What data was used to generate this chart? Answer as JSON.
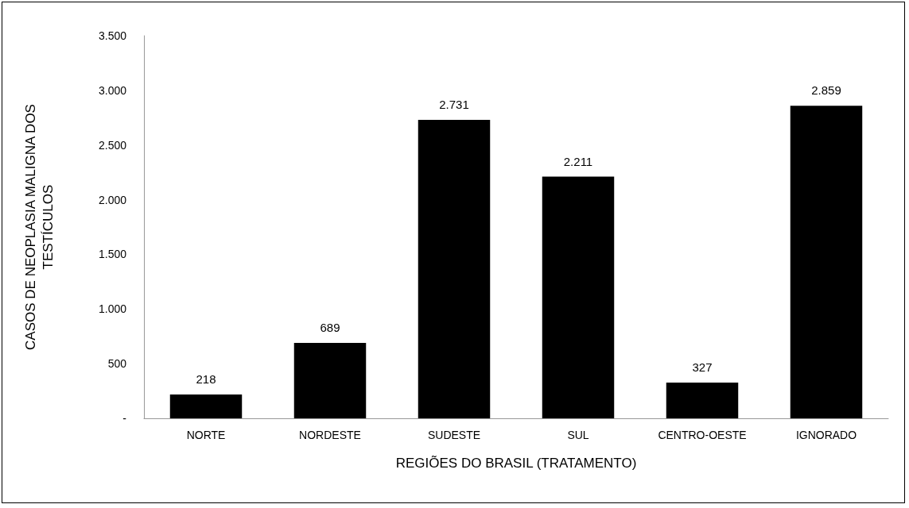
{
  "chart_data": {
    "type": "bar",
    "xlabel": "REGIÕES DO BRASIL (TRATAMENTO)",
    "ylabel": "CASOS DE NEOPLASIA MALIGNA DOS TESTÍCULOS",
    "categories": [
      "NORTE",
      "NORDESTE",
      "SUDESTE",
      "SUL",
      "CENTRO-OESTE",
      "IGNORADO"
    ],
    "values": [
      218,
      689,
      2731,
      2211,
      327,
      2859
    ],
    "value_labels": [
      "218",
      "689",
      "2.731",
      "2.211",
      "327",
      "2.859"
    ],
    "color": "#000000",
    "ylim": [
      0,
      3500
    ],
    "yticks": [
      {
        "value": 0,
        "label": "-"
      },
      {
        "value": 500,
        "label": "500"
      },
      {
        "value": 1000,
        "label": "1.000"
      },
      {
        "value": 1500,
        "label": "1.500"
      },
      {
        "value": 2000,
        "label": "2.000"
      },
      {
        "value": 2500,
        "label": "2.500"
      },
      {
        "value": 3000,
        "label": "3.000"
      },
      {
        "value": 3500,
        "label": "3.500"
      }
    ],
    "grid": false
  }
}
